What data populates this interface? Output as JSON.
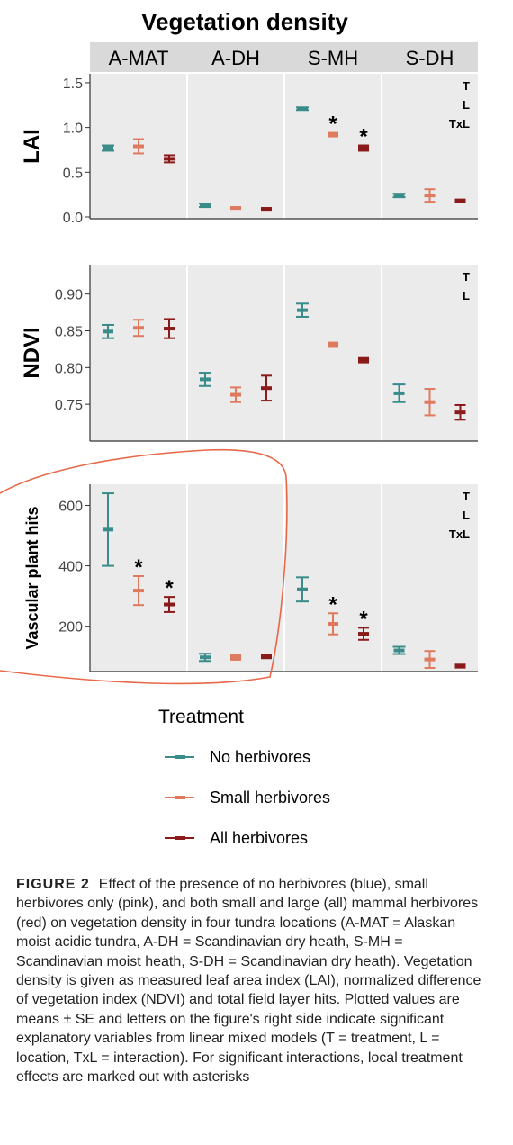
{
  "chart_data": {
    "type": "errorbar",
    "title": "Vegetation density",
    "facets": [
      "A-MAT",
      "A-DH",
      "S-MH",
      "S-DH"
    ],
    "series": [
      {
        "name": "No herbivores",
        "color": "#3a8c8a"
      },
      {
        "name": "Small herbivores",
        "color": "#e07a5f"
      },
      {
        "name": "All herbivores",
        "color": "#8b1a1a"
      }
    ],
    "legend_title": "Treatment",
    "panels": [
      {
        "ylabel": "LAI",
        "ylim": [
          -0.02,
          1.6
        ],
        "yticks": [
          "0.0",
          "0.5",
          "1.0",
          "1.5"
        ],
        "ytick_values": [
          0.0,
          0.5,
          1.0,
          1.5
        ],
        "sig_letters": [
          "T",
          "L",
          "TxL"
        ],
        "data": [
          [
            {
              "mean": 0.77,
              "se": 0.03
            },
            {
              "mean": 0.79,
              "se": 0.08
            },
            {
              "mean": 0.65,
              "se": 0.04
            }
          ],
          [
            {
              "mean": 0.13,
              "se": 0.02
            },
            {
              "mean": 0.1,
              "se": 0.01
            },
            {
              "mean": 0.09,
              "se": 0.01
            }
          ],
          [
            {
              "mean": 1.21,
              "se": 0.015
            },
            {
              "mean": 0.92,
              "se": 0.02
            },
            {
              "mean": 0.77,
              "se": 0.03
            }
          ],
          [
            {
              "mean": 0.24,
              "se": 0.02
            },
            {
              "mean": 0.24,
              "se": 0.07
            },
            {
              "mean": 0.18,
              "se": 0.015
            }
          ]
        ],
        "asterisks": [
          [
            2,
            1
          ],
          [
            2,
            2
          ]
        ]
      },
      {
        "ylabel": "NDVI",
        "ylim": [
          0.7,
          0.94
        ],
        "yticks": [
          "0.75",
          "0.80",
          "0.85",
          "0.90"
        ],
        "ytick_values": [
          0.75,
          0.8,
          0.85,
          0.9
        ],
        "sig_letters": [
          "T",
          "L"
        ],
        "data": [
          [
            {
              "mean": 0.849,
              "se": 0.009
            },
            {
              "mean": 0.854,
              "se": 0.011
            },
            {
              "mean": 0.853,
              "se": 0.013
            }
          ],
          [
            {
              "mean": 0.784,
              "se": 0.009
            },
            {
              "mean": 0.763,
              "se": 0.01
            },
            {
              "mean": 0.772,
              "se": 0.017
            }
          ],
          [
            {
              "mean": 0.878,
              "se": 0.009
            },
            {
              "mean": 0.831,
              "se": 0.003
            },
            {
              "mean": 0.81,
              "se": 0.003
            }
          ],
          [
            {
              "mean": 0.765,
              "se": 0.012
            },
            {
              "mean": 0.753,
              "se": 0.018
            },
            {
              "mean": 0.739,
              "se": 0.01
            }
          ]
        ],
        "asterisks": []
      },
      {
        "ylabel": "Vascular plant hits",
        "ylim": [
          50,
          670
        ],
        "yticks": [
          "200",
          "400",
          "600"
        ],
        "ytick_values": [
          200,
          400,
          600
        ],
        "sig_letters": [
          "T",
          "L",
          "TxL"
        ],
        "data": [
          [
            {
              "mean": 520,
              "se": 120
            },
            {
              "mean": 318,
              "se": 48
            },
            {
              "mean": 272,
              "se": 25
            }
          ],
          [
            {
              "mean": 97,
              "se": 12
            },
            {
              "mean": 97,
              "se": 8
            },
            {
              "mean": 100,
              "se": 6
            }
          ],
          [
            {
              "mean": 322,
              "se": 40
            },
            {
              "mean": 208,
              "se": 35
            },
            {
              "mean": 175,
              "se": 20
            }
          ],
          [
            {
              "mean": 120,
              "se": 12
            },
            {
              "mean": 90,
              "se": 28
            },
            {
              "mean": 68,
              "se": 5
            }
          ]
        ],
        "asterisks": [
          [
            0,
            1
          ],
          [
            0,
            2
          ],
          [
            2,
            1
          ],
          [
            2,
            2
          ]
        ]
      }
    ]
  },
  "caption": {
    "lead": "FIGURE 2",
    "text": "Effect of the presence of no herbivores (blue), small herbivores only (pink), and both small and large (all) mammal herbivores (red) on vegetation density in four tundra locations (A-MAT = Alaskan moist acidic tundra, A-DH = Scandinavian dry heath, S-MH = Scandinavian moist heath, S-DH = Scandinavian dry heath). Vegetation density is given as measured leaf area index (LAI), normalized difference of vegetation index (NDVI) and total field layer hits. Plotted values are means ± SE and letters on the figure's right side indicate significant explanatory variables from linear mixed models (T = treatment, L = location, TxL = interaction). For significant interactions, local treatment effects are marked out with asterisks"
  },
  "annotation_color": "#e8684a"
}
